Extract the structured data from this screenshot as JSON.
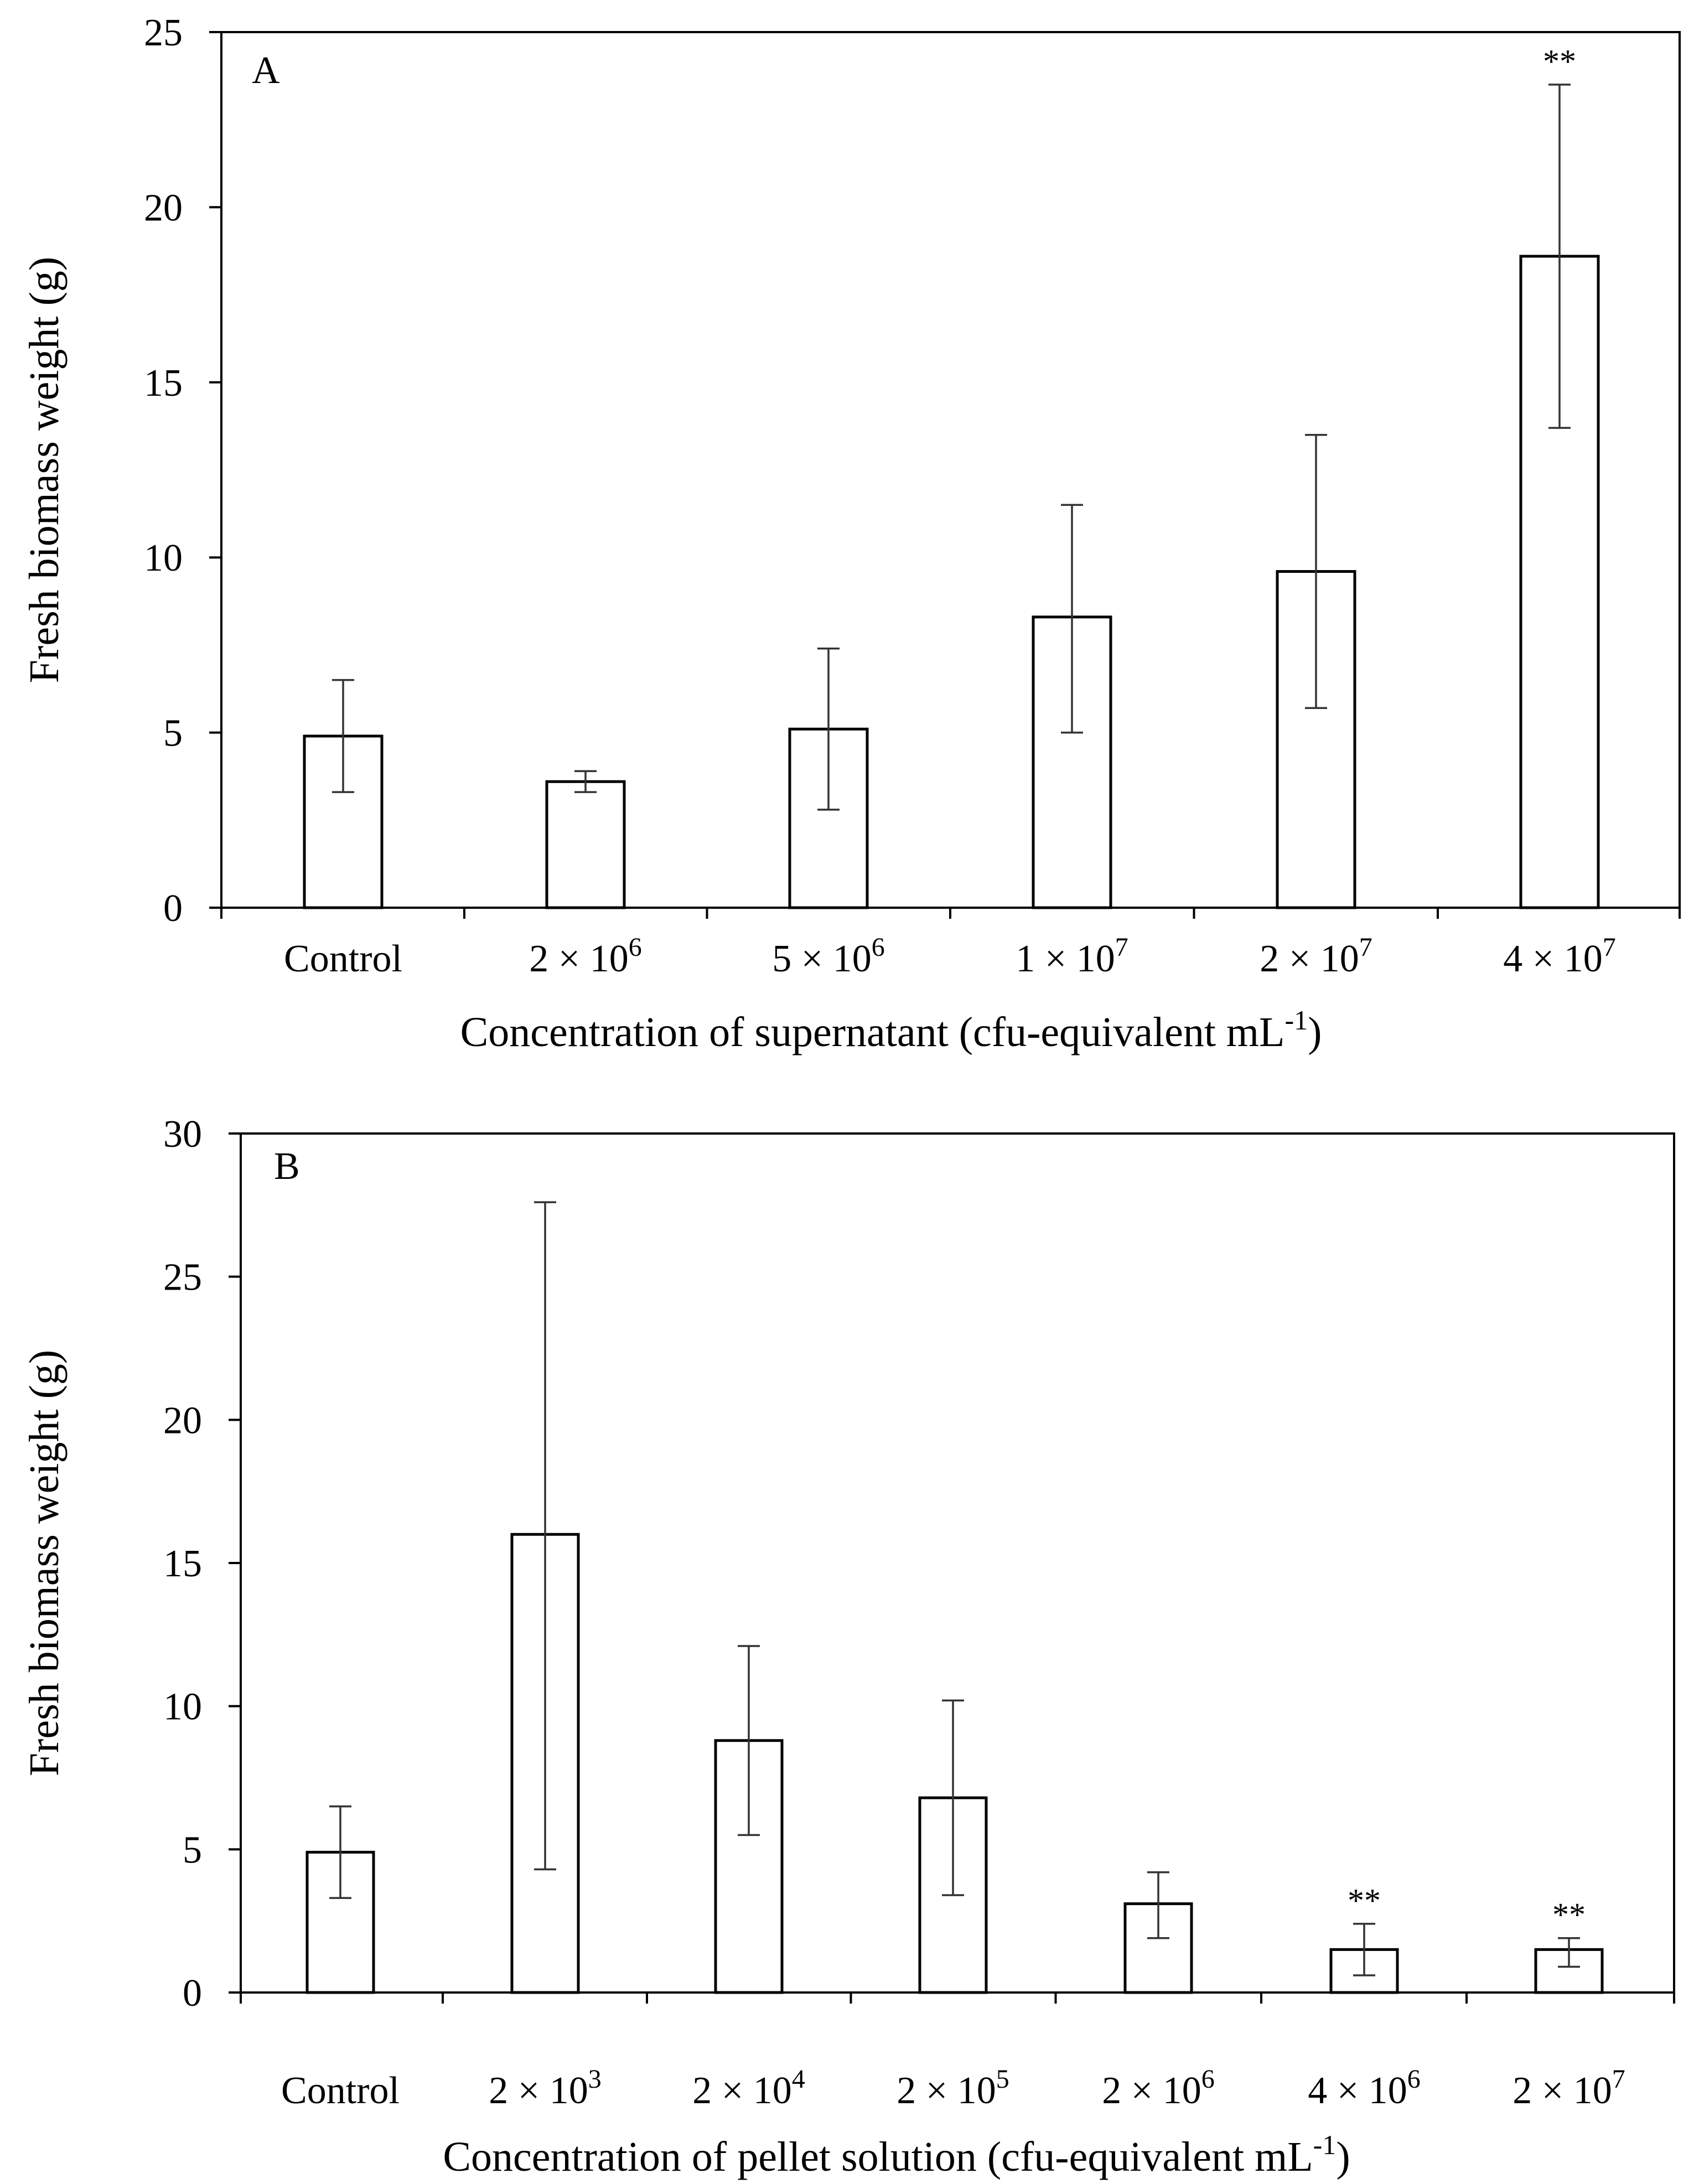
{
  "chart_data": [
    {
      "type": "bar",
      "panel_label": "A",
      "ylabel": "Fresh biomass weight (g)",
      "xlabel_main": "Concentration of supernatant (cfu-equivalent mL",
      "xlabel_sup": "-1",
      "xlabel_end": ")",
      "ylim": [
        0,
        25
      ],
      "yticks": [
        0,
        5,
        10,
        15,
        20,
        25
      ],
      "categories": [
        {
          "base": "Control",
          "sup": ""
        },
        {
          "base": "2 × 10",
          "sup": "6"
        },
        {
          "base": "5 × 10",
          "sup": "6"
        },
        {
          "base": "1 × 10",
          "sup": "7"
        },
        {
          "base": "2 × 10",
          "sup": "7"
        },
        {
          "base": "4 × 10",
          "sup": "7"
        }
      ],
      "values": [
        4.9,
        3.6,
        5.1,
        8.3,
        9.6,
        18.6
      ],
      "error_low": [
        3.3,
        3.3,
        2.8,
        5.0,
        5.7,
        13.7
      ],
      "error_high": [
        6.5,
        3.9,
        7.4,
        11.5,
        13.5,
        23.5
      ],
      "annotations": [
        "",
        "",
        "",
        "",
        "",
        "**"
      ]
    },
    {
      "type": "bar",
      "panel_label": "B",
      "ylabel": "Fresh biomass weight (g)",
      "xlabel_main": "Concentration of pellet solution (cfu-equivalent mL",
      "xlabel_sup": "-1",
      "xlabel_end": ")",
      "ylim": [
        0,
        30
      ],
      "yticks": [
        0,
        5,
        10,
        15,
        20,
        25,
        30
      ],
      "categories": [
        {
          "base": "Control",
          "sup": ""
        },
        {
          "base": "2 × 10",
          "sup": "3"
        },
        {
          "base": "2 × 10",
          "sup": "4"
        },
        {
          "base": "2 × 10",
          "sup": "5"
        },
        {
          "base": "2 × 10",
          "sup": "6"
        },
        {
          "base": "4 × 10",
          "sup": "6"
        },
        {
          "base": "2 × 10",
          "sup": "7"
        }
      ],
      "values": [
        4.9,
        16.0,
        8.8,
        6.8,
        3.1,
        1.5,
        1.5
      ],
      "error_low": [
        3.3,
        4.3,
        5.5,
        3.4,
        1.9,
        0.6,
        0.9
      ],
      "error_high": [
        6.5,
        27.6,
        12.1,
        10.2,
        4.2,
        2.4,
        1.9
      ],
      "annotations": [
        "",
        "",
        "",
        "",
        "",
        "**",
        "**"
      ]
    }
  ]
}
